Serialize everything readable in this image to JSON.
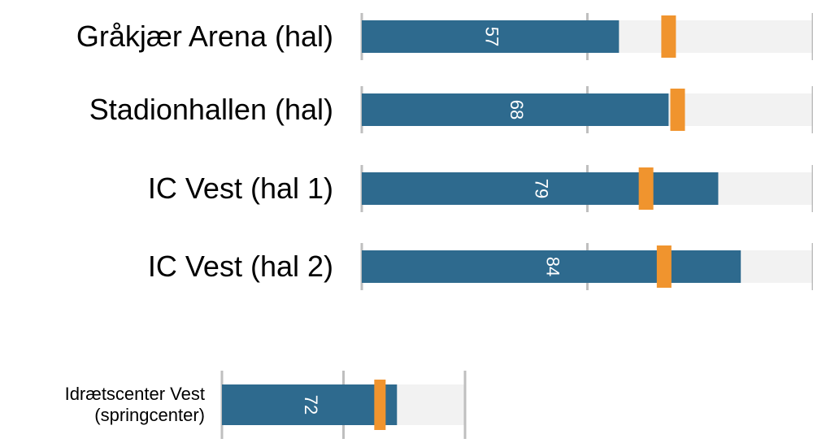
{
  "chart_data": [
    {
      "type": "bullet",
      "categories": [
        "Gråkjær Arena (hal)",
        "Stadionhallen (hal)",
        "IC Vest (hal 1)",
        "IC Vest (hal 2)"
      ],
      "values": [
        57,
        68,
        79,
        84
      ],
      "targets": [
        68,
        70,
        63,
        67
      ],
      "color": "#2e6a8e",
      "target_color": "#f0942e",
      "background_color": "#f2f2f2",
      "xlim": [
        0,
        100
      ],
      "xticks": [
        0,
        50,
        100
      ],
      "grid": true
    },
    {
      "type": "bullet",
      "categories": [
        "Idrætscenter Vest (springcenter)"
      ],
      "values": [
        72
      ],
      "targets": [
        65
      ],
      "color": "#2e6a8e",
      "target_color": "#f0942e",
      "background_color": "#f2f2f2",
      "xlim": [
        0,
        100
      ],
      "xticks": [
        0,
        50,
        100
      ],
      "grid": true
    }
  ]
}
